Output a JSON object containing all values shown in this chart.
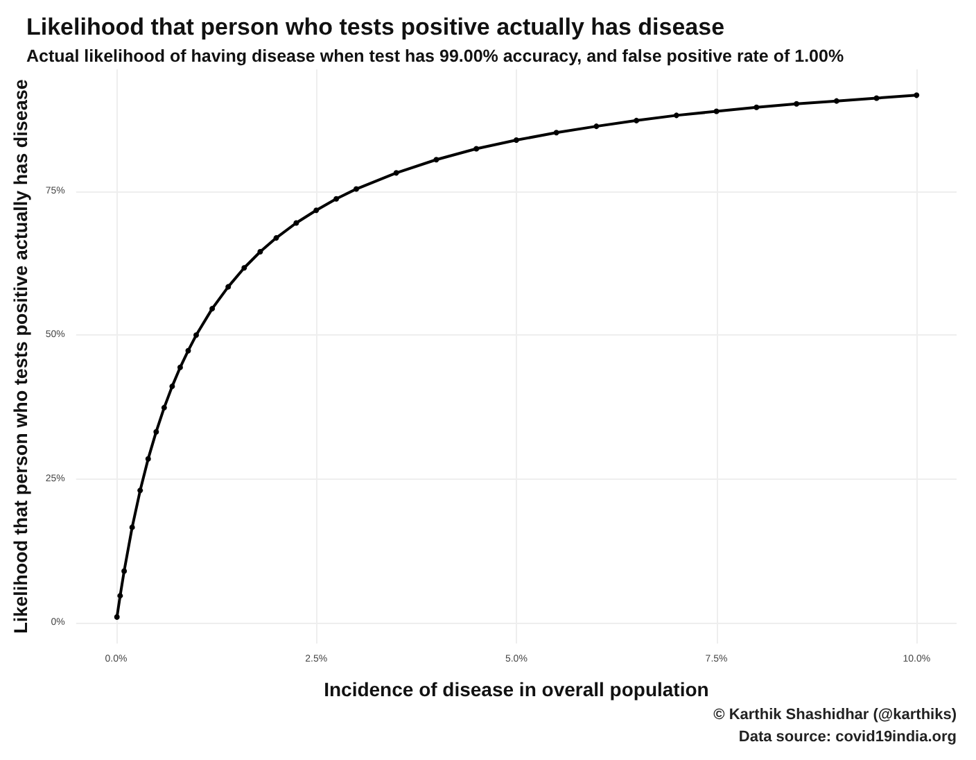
{
  "chart_data": {
    "type": "line",
    "title": "Likelihood that person who tests positive actually has disease",
    "subtitle": "Actual likelihood of having disease when test has 99.00% accuracy, and false positive rate of 1.00%",
    "xlabel": "Incidence of disease in overall population",
    "ylabel": "Likelihood that person who tests positive actually has disease",
    "annotations": [
      "© Karthik Shashidhar (@karthiks)",
      "Data source: covid19india.org"
    ],
    "x": [
      0.01,
      0.05,
      0.1,
      0.2,
      0.3,
      0.4,
      0.5,
      0.6,
      0.7,
      0.8,
      0.9,
      1.0,
      1.2,
      1.4,
      1.6,
      1.8,
      2.0,
      2.25,
      2.5,
      2.75,
      3.0,
      3.5,
      4.0,
      4.5,
      5.0,
      5.5,
      6.0,
      6.5,
      7.0,
      7.5,
      8.0,
      8.5,
      9.0,
      9.5,
      10.0
    ],
    "series": [
      {
        "color": "#000000",
        "values": [
          1.0,
          4.7,
          9.0,
          16.6,
          23.0,
          28.5,
          33.2,
          37.4,
          41.1,
          44.4,
          47.3,
          50.0,
          54.6,
          58.4,
          61.7,
          64.5,
          66.9,
          69.5,
          71.7,
          73.7,
          75.4,
          78.2,
          80.5,
          82.4,
          83.9,
          85.2,
          86.3,
          87.3,
          88.2,
          88.9,
          89.6,
          90.2,
          90.7,
          91.2,
          91.7
        ]
      }
    ],
    "xlim": [
      -0.5,
      10.5
    ],
    "xticks": [
      {
        "value": 0,
        "label": "0.0%"
      },
      {
        "value": 2.5,
        "label": "2.5%"
      },
      {
        "value": 5,
        "label": "5.0%"
      },
      {
        "value": 7.5,
        "label": "7.5%"
      },
      {
        "value": 10,
        "label": "10.0%"
      }
    ],
    "ylim": [
      -3.6,
      96.2
    ],
    "yticks": [
      {
        "value": 0,
        "label": "0%"
      },
      {
        "value": 25,
        "label": "25%"
      },
      {
        "value": 50,
        "label": "50%"
      },
      {
        "value": 75,
        "label": "75%"
      }
    ],
    "grid": true,
    "marker": "circle",
    "line_style": "solid"
  }
}
